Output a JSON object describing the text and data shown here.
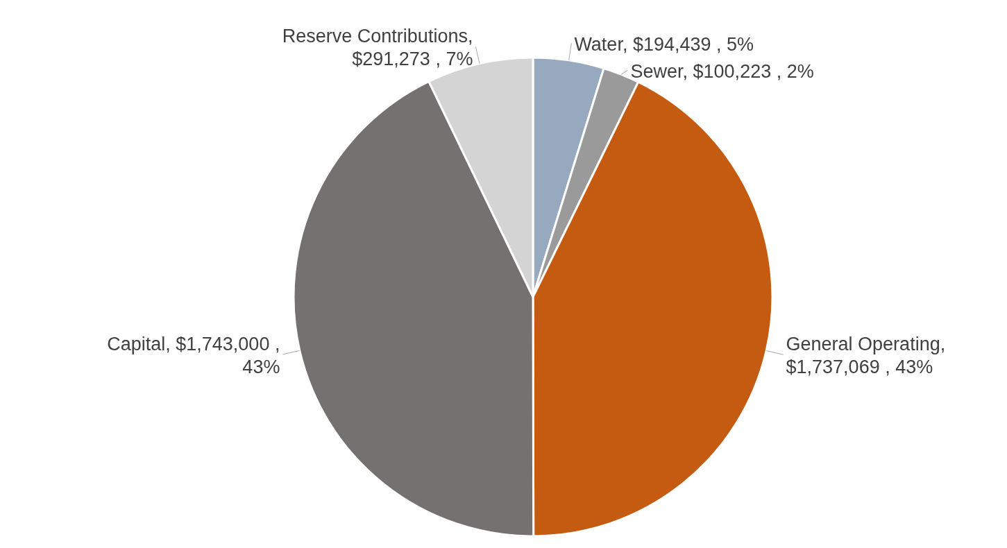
{
  "chart_data": {
    "type": "pie",
    "categories": [
      "Water",
      "Sewer",
      "General Operating",
      "Capital",
      "Reserve Contributions"
    ],
    "values": [
      194439,
      100223,
      1737069,
      1743000,
      291273
    ],
    "colors": [
      "#97a9bf",
      "#9a9a9a",
      "#c55a11",
      "#767171",
      "#d4d4d4"
    ],
    "value_labels": [
      ", $194,439 , 5%",
      ", $100,223 , 2%",
      ", $1,737,069 , 43%",
      ", $1,743,000 , 43%",
      ", $291,273 , 7%"
    ]
  }
}
